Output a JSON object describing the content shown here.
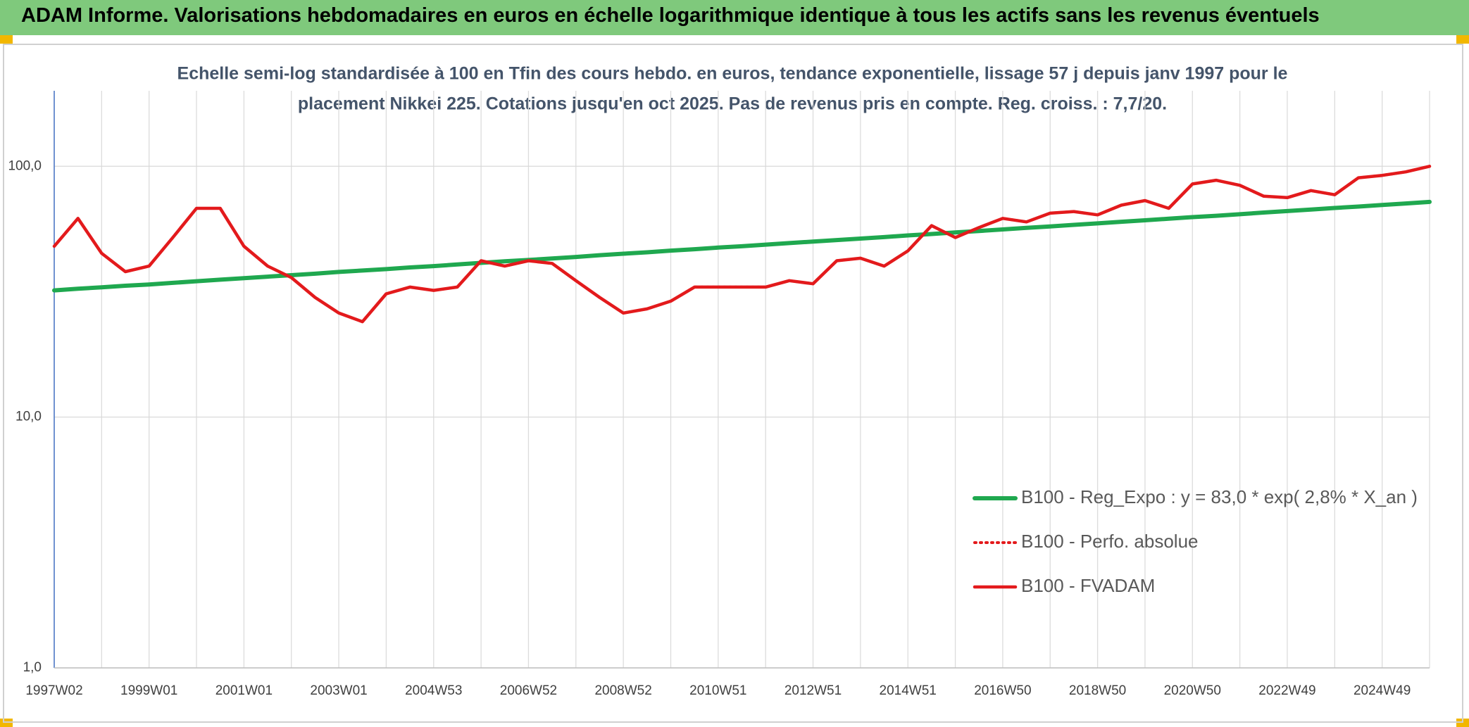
{
  "chart_data": {
    "type": "line",
    "title": "ADAM Informe. Valorisations hebdomadaires en euros en échelle logarithmique identique à tous les actifs sans les revenus éventuels",
    "subtitle": [
      "Echelle semi-log standardisée à 100 en Tfin des cours hebdo. en euros, tendance exponentielle, lissage 57 j depuis janv 1997 pour le",
      "placement Nikkei 225. Cotations jusqu'en oct 2025. Pas de revenus pris en compte. Reg. croiss. : 7,7/20."
    ],
    "log_scale": true,
    "grid": true,
    "legend": "lower right",
    "ylim": [
      1,
      200
    ],
    "yticks": [
      {
        "value": 1,
        "label": "1,0"
      },
      {
        "value": 10,
        "label": "10,0"
      },
      {
        "value": 100,
        "label": "100,0"
      }
    ],
    "categories": [
      "1997W02",
      null,
      null,
      null,
      "1999W01",
      null,
      null,
      null,
      "2001W01",
      null,
      null,
      null,
      "2003W01",
      null,
      null,
      null,
      "2004W53",
      null,
      null,
      null,
      "2006W52",
      null,
      null,
      null,
      "2008W52",
      null,
      null,
      null,
      "2010W51",
      null,
      null,
      null,
      "2012W51",
      null,
      null,
      null,
      "2014W51",
      null,
      null,
      null,
      "2016W50",
      null,
      null,
      null,
      "2018W50",
      null,
      null,
      null,
      "2020W50",
      null,
      null,
      null,
      "2022W49",
      null,
      null,
      null,
      "2024W49",
      null,
      null
    ],
    "series": [
      {
        "name": "B100 - Reg_Expo : y = 83,0 * exp( 2,8% *  X_an )",
        "color": "#1fa84f",
        "style": "solid",
        "values": [
          32.0,
          32.5,
          32.9,
          33.4,
          33.8,
          34.3,
          34.8,
          35.3,
          35.8,
          36.3,
          36.8,
          37.3,
          37.9,
          38.4,
          38.9,
          39.5,
          40.0,
          40.6,
          41.2,
          41.8,
          42.3,
          42.9,
          43.5,
          44.2,
          44.8,
          45.4,
          46.1,
          46.7,
          47.4,
          48.0,
          48.7,
          49.4,
          50.1,
          50.8,
          51.5,
          52.2,
          53.0,
          53.7,
          54.5,
          55.2,
          56.0,
          56.8,
          57.6,
          58.4,
          59.2,
          60.1,
          60.9,
          61.8,
          62.7,
          63.5,
          64.4,
          65.4,
          66.3,
          67.2,
          68.2,
          69.1,
          70.1,
          71.1,
          72.1
        ]
      },
      {
        "name": "B100 - Perfo. absolue",
        "color": "#e31a1c",
        "style": "dotted",
        "values": [
          48,
          62,
          45,
          38,
          40,
          52,
          68,
          68,
          48,
          40,
          36,
          30,
          26,
          24,
          31,
          33,
          32,
          33,
          42,
          40,
          42,
          41,
          35,
          30,
          26,
          27,
          29,
          33,
          33,
          33,
          33,
          35,
          34,
          42,
          43,
          40,
          46,
          58,
          52,
          57,
          62,
          60,
          65,
          66,
          64,
          70,
          73,
          68,
          85,
          88,
          84,
          76,
          75,
          80,
          77,
          90,
          92,
          95,
          100
        ]
      },
      {
        "name": "B100 - FVADAM",
        "color": "#e31a1c",
        "style": "solid",
        "values": [
          48,
          62,
          45,
          38,
          40,
          52,
          68,
          68,
          48,
          40,
          36,
          30,
          26,
          24,
          31,
          33,
          32,
          33,
          42,
          40,
          42,
          41,
          35,
          30,
          26,
          27,
          29,
          33,
          33,
          33,
          33,
          35,
          34,
          42,
          43,
          40,
          46,
          58,
          52,
          57,
          62,
          60,
          65,
          66,
          64,
          70,
          73,
          68,
          85,
          88,
          84,
          76,
          75,
          80,
          77,
          90,
          92,
          95,
          100
        ]
      }
    ]
  }
}
